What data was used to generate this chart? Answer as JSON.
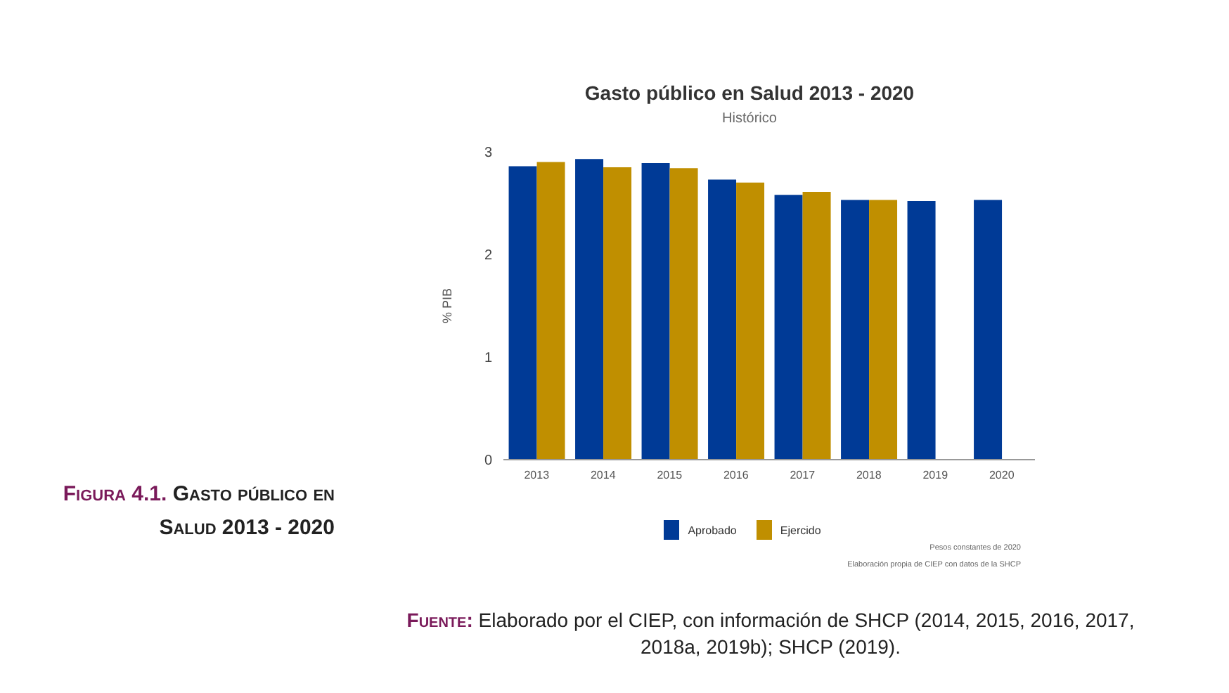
{
  "chart_data": {
    "type": "bar",
    "title": "Gasto público en Salud 2013 - 2020",
    "subtitle": "Histórico",
    "ylabel": "% PIB",
    "categories": [
      "2013",
      "2014",
      "2015",
      "2016",
      "2017",
      "2018",
      "2019",
      "2020"
    ],
    "series": [
      {
        "name": "Aprobado",
        "color": "#003a96",
        "values": [
          2.86,
          2.93,
          2.89,
          2.73,
          2.58,
          2.53,
          2.52,
          2.53
        ]
      },
      {
        "name": "Ejercido",
        "color": "#c08f00",
        "values": [
          2.9,
          2.85,
          2.84,
          2.7,
          2.61,
          2.53,
          null,
          null
        ]
      }
    ],
    "ylim": [
      0,
      3
    ],
    "yticks": [
      0,
      1,
      2,
      3
    ],
    "grid": false,
    "legend": "bottom",
    "annotations": [
      "Pesos constantes de 2020",
      "Elaboración propia de CIEP con datos de la SHCP",
      "Figura 4.1.",
      "Gasto público en Salud 2013 - 2020",
      "Fuente:",
      "Elaborado por el CIEP, con información de SHCP (2014, 2015, 2016, 2017, 2018a, 2019b); SHCP (2019)."
    ]
  }
}
